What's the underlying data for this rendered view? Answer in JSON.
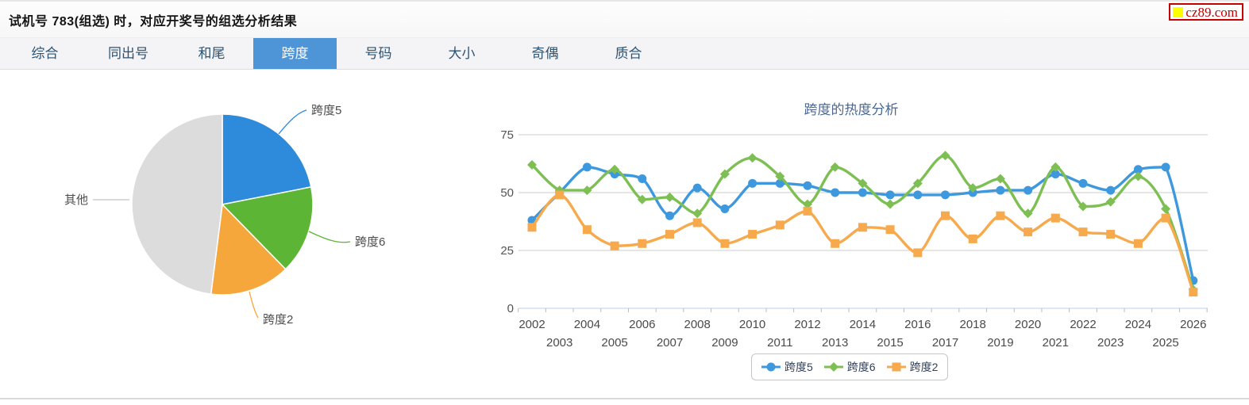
{
  "header": {
    "title": "试机号 783(组选) 时，对应开奖号的组选分析结果"
  },
  "logo": {
    "text": "cz89.com",
    "border_color": "#c40000",
    "square_color": "#ffff00"
  },
  "tabs": {
    "items": [
      "综合",
      "同出号",
      "和尾",
      "跨度",
      "号码",
      "大小",
      "奇偶",
      "质合"
    ],
    "active": "跨度",
    "active_bg": "#4e95d7"
  },
  "chart_data": [
    {
      "type": "pie",
      "labels": [
        "跨度5",
        "跨度6",
        "跨度2",
        "其他"
      ],
      "values_percent": [
        21.9,
        15.8,
        14.3,
        48.0
      ],
      "colors": [
        "#2e8ada",
        "#5db535",
        "#f5a73c",
        "#dcdcdc"
      ],
      "label_color": "#4d4d4d",
      "leader_gray": "#c4c4c4"
    },
    {
      "type": "line",
      "title": "跨度的热度分析",
      "title_color": "#4d6890",
      "x": [
        2002,
        2003,
        2004,
        2005,
        2006,
        2007,
        2008,
        2009,
        2010,
        2011,
        2012,
        2013,
        2014,
        2015,
        2016,
        2017,
        2018,
        2019,
        2020,
        2021,
        2022,
        2023,
        2024,
        2025,
        2026
      ],
      "series": [
        {
          "name": "跨度5",
          "color": "#3e98dd",
          "marker": "circle",
          "values": [
            38,
            50,
            61,
            58,
            56,
            40,
            52,
            43,
            54,
            54,
            53,
            50,
            50,
            49,
            49,
            49,
            50,
            51,
            51,
            58,
            54,
            51,
            60,
            61,
            12
          ]
        },
        {
          "name": "跨度6",
          "color": "#7dbf53",
          "marker": "diamond",
          "values": [
            62,
            51,
            51,
            60,
            47,
            48,
            41,
            58,
            65,
            57,
            45,
            61,
            54,
            45,
            54,
            66,
            52,
            56,
            41,
            61,
            44,
            46,
            57,
            43,
            8
          ]
        },
        {
          "name": "跨度2",
          "color": "#f6aa4d",
          "marker": "square",
          "values": [
            35,
            49,
            34,
            27,
            28,
            32,
            37,
            28,
            32,
            36,
            42,
            28,
            35,
            34,
            24,
            40,
            30,
            40,
            33,
            39,
            33,
            32,
            28,
            39,
            7
          ]
        }
      ],
      "ylim": [
        0,
        75
      ],
      "yticks": [
        75,
        50,
        25,
        0
      ],
      "grid": true,
      "grid_color": "#cccccc",
      "axis_color": "#bdd0e2",
      "tick_label_color": "#4a4a4a",
      "legend_position": "bottom"
    }
  ]
}
